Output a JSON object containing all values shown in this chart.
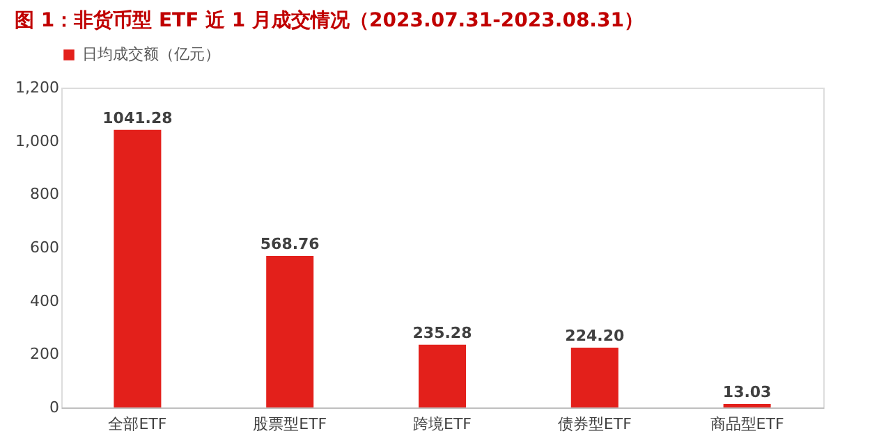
{
  "chart_data": {
    "type": "bar",
    "title": "图 1：非货币型 ETF 近 1 月成交情况（2023.07.31-2023.08.31）",
    "categories": [
      "全部ETF",
      "股票型ETF",
      "跨境ETF",
      "债券型ETF",
      "商品型ETF"
    ],
    "series": [
      {
        "name": "日均成交额（亿元）",
        "color": "#e3201b",
        "values": [
          1041.28,
          568.76,
          235.28,
          224.2,
          13.03
        ]
      }
    ],
    "value_labels": [
      "1041.28",
      "568.76",
      "235.28",
      "224.20",
      "13.03"
    ],
    "ylim": [
      0,
      1200
    ],
    "yticks": [
      {
        "value": 0,
        "label": "0"
      },
      {
        "value": 200,
        "label": "200"
      },
      {
        "value": 400,
        "label": "400"
      },
      {
        "value": 600,
        "label": "600"
      },
      {
        "value": 800,
        "label": "800"
      },
      {
        "value": 1000,
        "label": "1,000"
      },
      {
        "value": 1200,
        "label": "1,200"
      }
    ],
    "grid": false,
    "legend": "top"
  }
}
